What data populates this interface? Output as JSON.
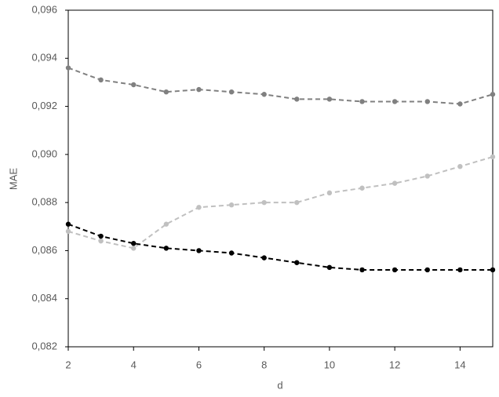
{
  "chart_data": {
    "type": "line",
    "xlabel": "d",
    "ylabel": "MAE",
    "x": [
      2,
      3,
      4,
      5,
      6,
      7,
      8,
      9,
      10,
      11,
      12,
      13,
      14,
      15
    ],
    "xlim": [
      2,
      15
    ],
    "xticks": [
      2,
      4,
      6,
      8,
      10,
      12,
      14
    ],
    "ylim": [
      0.082,
      0.096
    ],
    "yticks": [
      {
        "value": 0.082,
        "label": "0,082"
      },
      {
        "value": 0.084,
        "label": "0,084"
      },
      {
        "value": 0.086,
        "label": "0,086"
      },
      {
        "value": 0.088,
        "label": "0,088"
      },
      {
        "value": 0.09,
        "label": "0,090"
      },
      {
        "value": 0.092,
        "label": "0,092"
      },
      {
        "value": 0.094,
        "label": "0,094"
      },
      {
        "value": 0.096,
        "label": "0,096"
      }
    ],
    "grid": false,
    "series": [
      {
        "color": "#808080",
        "values": [
          0.0936,
          0.0931,
          0.0929,
          0.0926,
          0.0927,
          0.0926,
          0.0925,
          0.0923,
          0.0923,
          0.0922,
          0.0922,
          0.0922,
          0.0921,
          0.0925
        ]
      },
      {
        "color": "#c0c0c0",
        "values": [
          0.0868,
          0.0864,
          0.0861,
          0.0871,
          0.0878,
          0.0879,
          0.088,
          0.088,
          0.0884,
          0.0886,
          0.0888,
          0.0891,
          0.0895,
          0.0899
        ]
      },
      {
        "color": "#000000",
        "values": [
          0.0871,
          0.0866,
          0.0863,
          0.0861,
          0.086,
          0.0859,
          0.0857,
          0.0855,
          0.0853,
          0.0852,
          0.0852,
          0.0852,
          0.0852,
          0.0852
        ]
      }
    ]
  }
}
